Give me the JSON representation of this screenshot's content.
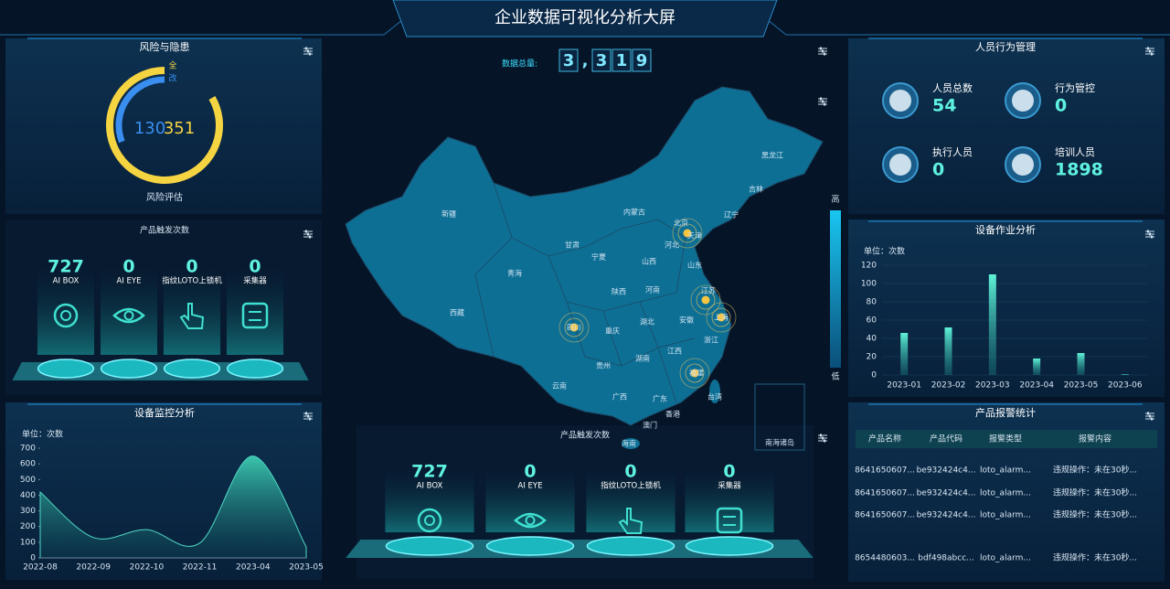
{
  "header": {
    "title": "企业数据可视化分析大屏"
  },
  "risk": {
    "title": "风险与隐患",
    "caption": "风险评估",
    "series": [
      {
        "name": "全",
        "value": 351,
        "color": "#f5d442"
      },
      {
        "name": "改",
        "value": 130,
        "color": "#3a8ef0"
      }
    ]
  },
  "triggers": {
    "title": "产品触发次数",
    "items": [
      {
        "value": 727,
        "label": "AI BOX"
      },
      {
        "value": 0,
        "label": "AI EYE"
      },
      {
        "value": 0,
        "label": "指纹LOTO上锁机"
      },
      {
        "value": 0,
        "label": "采集器"
      }
    ]
  },
  "total": {
    "label": "数据总量:",
    "digits": [
      "3",
      ",",
      "3",
      "1",
      "9"
    ]
  },
  "map": {
    "high": "高",
    "low": "低",
    "labels": [
      "黑龙江",
      "吉林",
      "辽宁",
      "内蒙古",
      "北京",
      "天津",
      "河北",
      "新疆",
      "甘肃",
      "宁夏",
      "山西",
      "山东",
      "青海",
      "陕西",
      "河南",
      "江苏",
      "西藏",
      "四川",
      "重庆",
      "湖北",
      "安徽",
      "上海",
      "浙江",
      "湖南",
      "江西",
      "贵州",
      "云南",
      "广西",
      "广东",
      "福建",
      "台湾",
      "香港",
      "澳门",
      "海南",
      "南海诸岛"
    ]
  },
  "personnel": {
    "title": "人员行为管理",
    "items": [
      {
        "label": "人员总数",
        "value": 54
      },
      {
        "label": "行为管控",
        "value": 0
      },
      {
        "label": "执行人员",
        "value": 0
      },
      {
        "label": "培训人员",
        "value": 1898
      }
    ]
  },
  "alarms": {
    "title": "产品报警统计",
    "columns": [
      "产品名称",
      "产品代码",
      "报警类型",
      "报警内容"
    ],
    "rows": [
      [
        "8641650607...",
        "be932424c4...",
        "loto_alarm...",
        "违规操作：未在30秒..."
      ],
      [
        "8641650607...",
        "be932424c4...",
        "loto_alarm...",
        "违规操作：未在30秒..."
      ],
      [
        "8641650607...",
        "be932424c4...",
        "loto_alarm...",
        "违规操作：未在30秒..."
      ],
      [
        "8654480603...",
        "bdf498abcc...",
        "loto_alarm...",
        "违规操作：未在30秒..."
      ]
    ]
  },
  "chart_data": [
    {
      "type": "bar",
      "title": "设备作业分析",
      "unit": "单位：次数",
      "categories": [
        "2023-01",
        "2023-02",
        "2023-03",
        "2023-04",
        "2023-05",
        "2023-06"
      ],
      "values": [
        46,
        52,
        110,
        18,
        24,
        1
      ],
      "color": "#3fd6b8",
      "ylim": [
        0,
        120
      ],
      "yticks": [
        0,
        20,
        40,
        60,
        80,
        100,
        120
      ],
      "grid": true
    },
    {
      "type": "area",
      "title": "设备监控分析",
      "unit": "单位：次数",
      "categories": [
        "2022-08",
        "2022-09",
        "2022-10",
        "2022-11",
        "2023-04",
        "2023-05"
      ],
      "values": [
        420,
        130,
        180,
        95,
        650,
        70
      ],
      "color": "#4fd8c4",
      "ylim": [
        0,
        700
      ],
      "yticks": [
        0,
        100,
        200,
        300,
        400,
        500,
        600,
        700
      ],
      "grid": false
    }
  ]
}
